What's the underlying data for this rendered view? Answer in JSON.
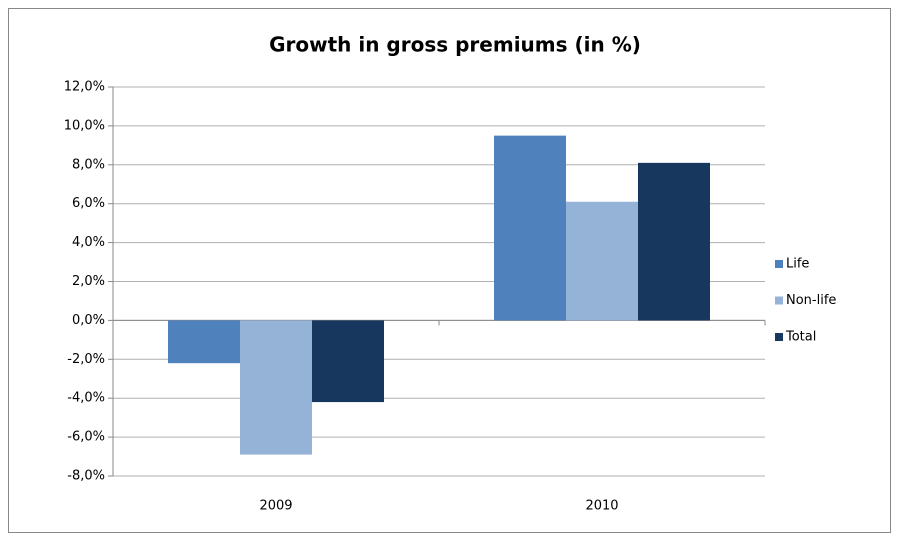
{
  "chart_data": {
    "type": "bar",
    "title": "Growth in gross premiums (in %)",
    "categories": [
      "2009",
      "2010"
    ],
    "series": [
      {
        "name": "Life",
        "color": "#4f81bd",
        "values": [
          -2.2,
          9.5
        ]
      },
      {
        "name": "Non-life",
        "color": "#95b3d7",
        "values": [
          -6.9,
          6.1
        ]
      },
      {
        "name": "Total",
        "color": "#17375e",
        "values": [
          -4.2,
          8.1
        ]
      }
    ],
    "ylim": [
      -8,
      12
    ],
    "yticks": [
      {
        "value": -8,
        "label": "-8,0%"
      },
      {
        "value": -6,
        "label": "-6,0%"
      },
      {
        "value": -4,
        "label": "-4,0%"
      },
      {
        "value": -2,
        "label": "-2,0%"
      },
      {
        "value": 0,
        "label": "0,0%"
      },
      {
        "value": 2,
        "label": "2,0%"
      },
      {
        "value": 4,
        "label": "4,0%"
      },
      {
        "value": 6,
        "label": "6,0%"
      },
      {
        "value": 8,
        "label": "8,0%"
      },
      {
        "value": 10,
        "label": "10,0%"
      },
      {
        "value": 12,
        "label": "12,0%"
      }
    ],
    "grid": true,
    "legend": "right"
  }
}
